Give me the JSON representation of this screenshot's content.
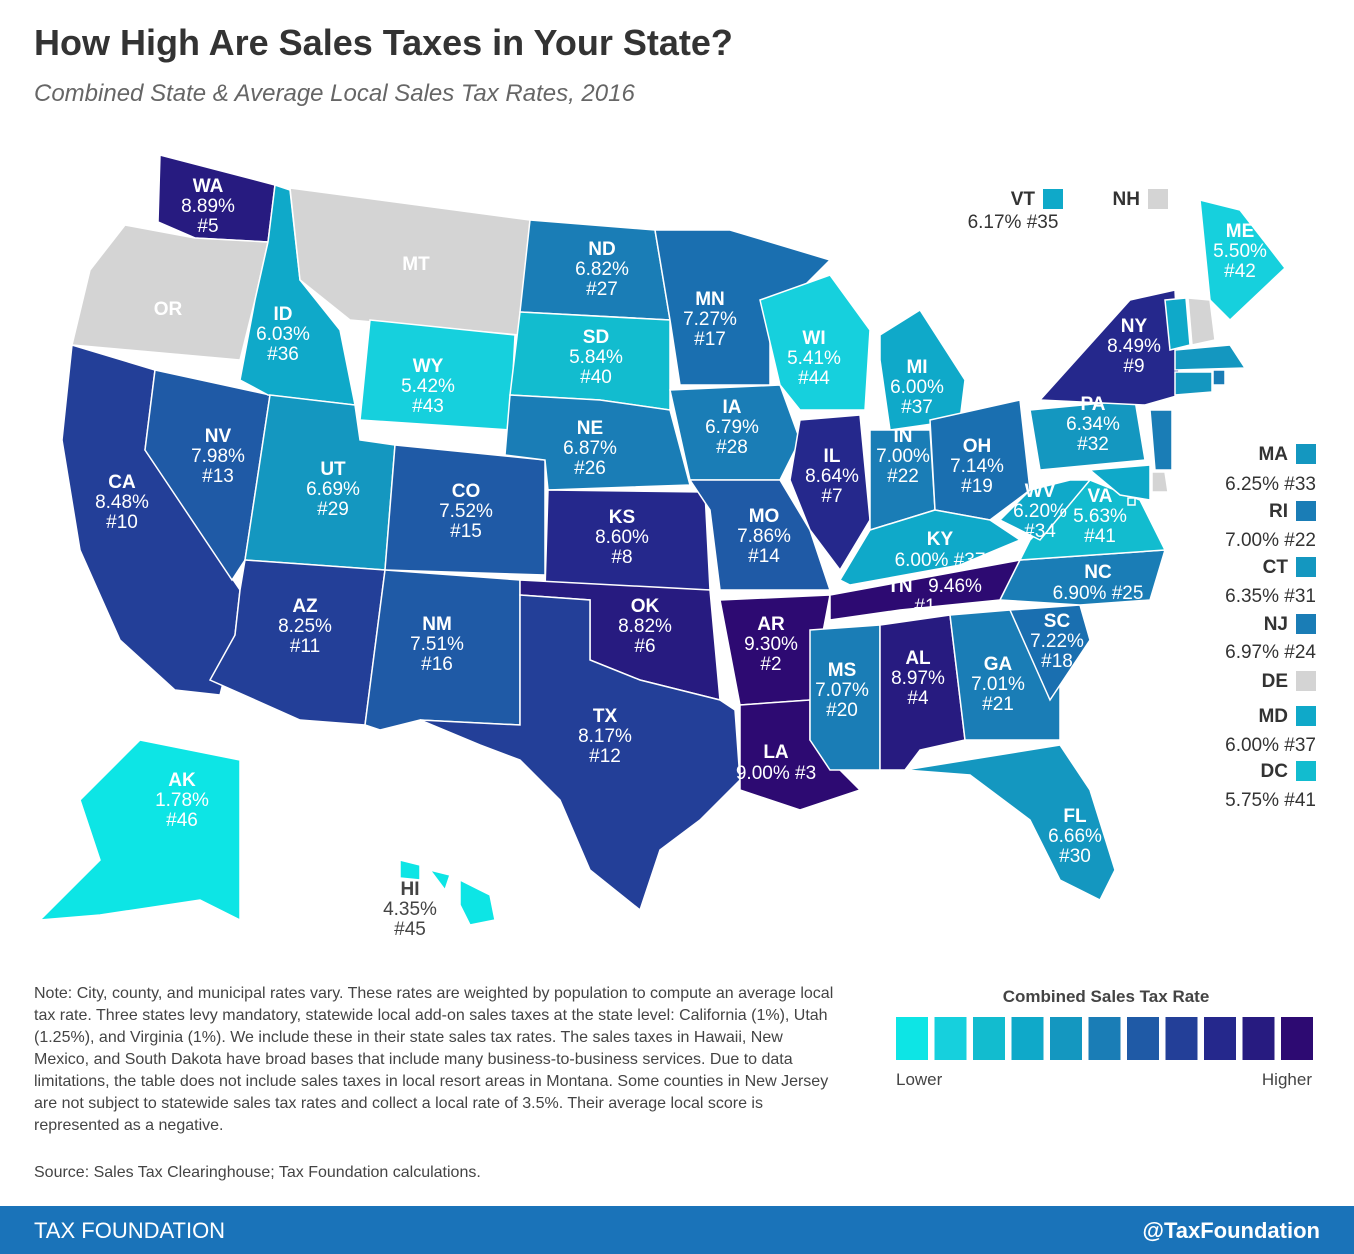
{
  "header": {
    "title": "How High Are Sales Taxes in Your State?",
    "subtitle": "Combined State & Average Local Sales Tax Rates, 2016"
  },
  "map": {
    "no_tax_color": "#d4d4d4",
    "states": [
      {
        "abbr": "WA",
        "rate": "8.89%",
        "rank": "#5",
        "color": "#271b80"
      },
      {
        "abbr": "OR",
        "color": "#d4d4d4"
      },
      {
        "abbr": "CA",
        "rate": "8.48%",
        "rank": "#10",
        "color": "#233f98"
      },
      {
        "abbr": "NV",
        "rate": "7.98%",
        "rank": "#13",
        "color": "#1f5aa6"
      },
      {
        "abbr": "ID",
        "rate": "6.03%",
        "rank": "#36",
        "color": "#0fa9c9"
      },
      {
        "abbr": "MT",
        "color": "#d4d4d4"
      },
      {
        "abbr": "WY",
        "rate": "5.42%",
        "rank": "#43",
        "color": "#16d0dd"
      },
      {
        "abbr": "UT",
        "rate": "6.69%",
        "rank": "#29",
        "color": "#1497c0"
      },
      {
        "abbr": "CO",
        "rate": "7.52%",
        "rank": "#15",
        "color": "#1f5aa6"
      },
      {
        "abbr": "AZ",
        "rate": "8.25%",
        "rank": "#11",
        "color": "#233f98"
      },
      {
        "abbr": "NM",
        "rate": "7.51%",
        "rank": "#16",
        "color": "#1f5aa6"
      },
      {
        "abbr": "ND",
        "rate": "6.82%",
        "rank": "#27",
        "color": "#1a7db6"
      },
      {
        "abbr": "SD",
        "rate": "5.84%",
        "rank": "#40",
        "color": "#12bccf"
      },
      {
        "abbr": "NE",
        "rate": "6.87%",
        "rank": "#26",
        "color": "#1a7db6"
      },
      {
        "abbr": "KS",
        "rate": "8.60%",
        "rank": "#8",
        "color": "#25288c"
      },
      {
        "abbr": "OK",
        "rate": "8.82%",
        "rank": "#6",
        "color": "#271b80"
      },
      {
        "abbr": "TX",
        "rate": "8.17%",
        "rank": "#12",
        "color": "#233f98"
      },
      {
        "abbr": "MN",
        "rate": "7.27%",
        "rank": "#17",
        "color": "#1a6fb0"
      },
      {
        "abbr": "IA",
        "rate": "6.79%",
        "rank": "#28",
        "color": "#1a7db6"
      },
      {
        "abbr": "MO",
        "rate": "7.86%",
        "rank": "#14",
        "color": "#1f5aa6"
      },
      {
        "abbr": "AR",
        "rate": "9.30%",
        "rank": "#2",
        "color": "#2d0a72"
      },
      {
        "abbr": "LA",
        "rate": "9.00%",
        "rank": "#3",
        "color": "#2d0a72"
      },
      {
        "abbr": "WI",
        "rate": "5.41%",
        "rank": "#44",
        "color": "#16d0dd"
      },
      {
        "abbr": "IL",
        "rate": "8.64%",
        "rank": "#7",
        "color": "#25288c"
      },
      {
        "abbr": "MI",
        "rate": "6.00%",
        "rank": "#37",
        "color": "#0fa9c9"
      },
      {
        "abbr": "IN",
        "rate": "7.00%",
        "rank": "#22",
        "color": "#1a7db6"
      },
      {
        "abbr": "OH",
        "rate": "7.14%",
        "rank": "#19",
        "color": "#1a6fb0"
      },
      {
        "abbr": "KY",
        "rate": "6.00%",
        "rank": "#37",
        "color": "#0fa9c9"
      },
      {
        "abbr": "TN",
        "rate": "9.46%",
        "rank": "#1",
        "color": "#2d0a72"
      },
      {
        "abbr": "MS",
        "rate": "7.07%",
        "rank": "#20",
        "color": "#1a7db6"
      },
      {
        "abbr": "AL",
        "rate": "8.97%",
        "rank": "#4",
        "color": "#271b80"
      },
      {
        "abbr": "GA",
        "rate": "7.01%",
        "rank": "#21",
        "color": "#1a7db6"
      },
      {
        "abbr": "FL",
        "rate": "6.66%",
        "rank": "#30",
        "color": "#1497c0"
      },
      {
        "abbr": "SC",
        "rate": "7.22%",
        "rank": "#18",
        "color": "#1a6fb0"
      },
      {
        "abbr": "NC",
        "rate": "6.90%",
        "rank": "#25",
        "color": "#1a7db6"
      },
      {
        "abbr": "VA",
        "rate": "5.63%",
        "rank": "#41",
        "color": "#12bccf"
      },
      {
        "abbr": "WV",
        "rate": "6.20%",
        "rank": "#34",
        "color": "#0fa9c9"
      },
      {
        "abbr": "PA",
        "rate": "6.34%",
        "rank": "#32",
        "color": "#1497c0"
      },
      {
        "abbr": "NY",
        "rate": "8.49%",
        "rank": "#9",
        "color": "#25288c"
      },
      {
        "abbr": "ME",
        "rate": "5.50%",
        "rank": "#42",
        "color": "#16d0dd"
      },
      {
        "abbr": "AK",
        "rate": "1.78%",
        "rank": "#46",
        "color": "#0de5e5"
      },
      {
        "abbr": "HI",
        "rate": "4.35%",
        "rank": "#45",
        "color": "#0de5e5"
      },
      {
        "abbr": "VT",
        "rate": "6.17%",
        "rank": "#35",
        "color": "#0fa9c9"
      },
      {
        "abbr": "NH",
        "color": "#d4d4d4"
      },
      {
        "abbr": "MA",
        "rate": "6.25%",
        "rank": "#33",
        "color": "#1497c0"
      },
      {
        "abbr": "RI",
        "rate": "7.00%",
        "rank": "#22",
        "color": "#1a7db6"
      },
      {
        "abbr": "CT",
        "rate": "6.35%",
        "rank": "#31",
        "color": "#1497c0"
      },
      {
        "abbr": "NJ",
        "rate": "6.97%",
        "rank": "#24",
        "color": "#1a7db6"
      },
      {
        "abbr": "DE",
        "color": "#d4d4d4"
      },
      {
        "abbr": "MD",
        "rate": "6.00%",
        "rank": "#37",
        "color": "#0fa9c9"
      },
      {
        "abbr": "DC",
        "rate": "5.75%",
        "rank": "#41",
        "color": "#12bccf"
      }
    ]
  },
  "legend": {
    "title": "Combined Sales Tax Rate",
    "low_label": "Lower",
    "high_label": "Higher",
    "colors": [
      "#0de5e5",
      "#16d0dd",
      "#12bccf",
      "#0fa9c9",
      "#1497c0",
      "#1a7db6",
      "#1f5aa6",
      "#233f98",
      "#25288c",
      "#271b80",
      "#2d0a72"
    ]
  },
  "note": "Note: City, county, and municipal rates vary. These rates are weighted by population to compute an average local tax rate. Three states levy mandatory, statewide local add-on sales taxes at the state level: California (1%), Utah (1.25%), and Virginia (1%). We include these in their state sales tax rates. The sales taxes in Hawaii, New Mexico, and South Dakota have broad bases that include many business-to-business services. Due to data limitations, the table does not include sales taxes in local resort areas in Montana. Some counties in New Jersey are not subject to statewide sales tax rates and collect a local rate of 3.5%. Their average local score is represented as a negative.",
  "source": "Source: Sales Tax Clearinghouse; Tax Foundation calculations.",
  "footer": {
    "left": "TAX FOUNDATION",
    "right": "@TaxFoundation"
  }
}
